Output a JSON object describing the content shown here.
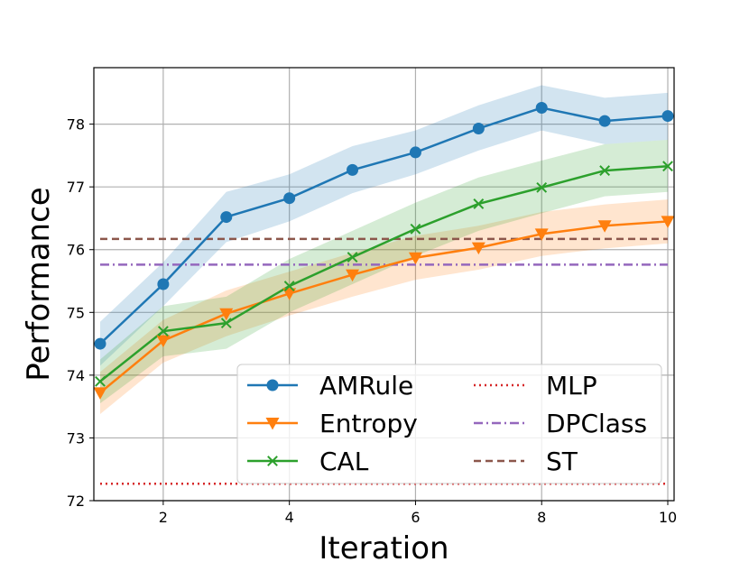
{
  "chart_data": {
    "type": "line",
    "xlabel": "Iteration",
    "ylabel": "Performance",
    "xlim": [
      0.9,
      10.1
    ],
    "ylim": [
      72.0,
      78.9
    ],
    "xticks": [
      2,
      4,
      6,
      8,
      10
    ],
    "yticks": [
      72,
      73,
      74,
      75,
      76,
      77,
      78
    ],
    "grid": true,
    "legend_position": "lower-right",
    "series": [
      {
        "name": "AMRule",
        "color": "#1f77b4",
        "marker": "circle",
        "x": [
          1,
          2,
          3,
          4,
          5,
          6,
          7,
          8,
          9,
          10
        ],
        "y": [
          74.5,
          75.45,
          76.52,
          76.82,
          77.27,
          77.55,
          77.93,
          78.26,
          78.05,
          78.13
        ],
        "band_low": [
          74.15,
          75.1,
          76.12,
          76.45,
          76.9,
          77.2,
          77.58,
          77.9,
          77.68,
          77.75
        ],
        "band_high": [
          74.85,
          75.8,
          76.92,
          77.2,
          77.65,
          77.9,
          78.3,
          78.62,
          78.42,
          78.5
        ]
      },
      {
        "name": "Entropy",
        "color": "#ff7f0e",
        "marker": "triangle-down",
        "x": [
          1,
          2,
          3,
          4,
          5,
          6,
          7,
          8,
          9,
          10
        ],
        "y": [
          73.72,
          74.55,
          74.98,
          75.3,
          75.6,
          75.87,
          76.03,
          76.25,
          76.38,
          76.45
        ],
        "band_low": [
          73.38,
          74.2,
          74.62,
          74.95,
          75.25,
          75.52,
          75.68,
          75.9,
          76.02,
          76.1
        ],
        "band_high": [
          74.05,
          74.88,
          75.35,
          75.65,
          75.95,
          76.22,
          76.38,
          76.6,
          76.72,
          76.8
        ]
      },
      {
        "name": "CAL",
        "color": "#2ca02c",
        "marker": "x",
        "x": [
          1,
          2,
          3,
          4,
          5,
          6,
          7,
          8,
          9,
          10
        ],
        "y": [
          73.9,
          74.7,
          74.83,
          75.42,
          75.88,
          76.33,
          76.73,
          76.99,
          77.26,
          77.33
        ],
        "band_low": [
          73.55,
          74.3,
          74.42,
          75.0,
          75.45,
          75.9,
          76.3,
          76.58,
          76.85,
          76.92
        ],
        "band_high": [
          74.25,
          75.1,
          75.25,
          75.85,
          76.3,
          76.75,
          77.15,
          77.42,
          77.68,
          77.75
        ]
      },
      {
        "name": "MLP",
        "color": "#d62728",
        "dash": "dotted",
        "constant": 72.27
      },
      {
        "name": "DPClass",
        "color": "#9467bd",
        "dash": "dashdot",
        "constant": 75.76
      },
      {
        "name": "ST",
        "color": "#8c564b",
        "dash": "dashed",
        "constant": 76.17
      }
    ]
  }
}
